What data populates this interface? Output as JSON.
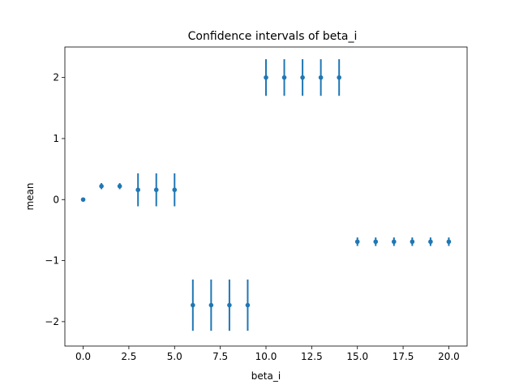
{
  "chart_data": {
    "type": "scatter",
    "title": "Confidence intervals of beta_i",
    "xlabel": "beta_i",
    "ylabel": "mean",
    "xlim": [
      -1,
      21
    ],
    "ylim": [
      -2.4,
      2.5
    ],
    "grid": false,
    "color": "#1f77b4",
    "x_ticks": [
      0.0,
      2.5,
      5.0,
      7.5,
      10.0,
      12.5,
      15.0,
      17.5,
      20.0
    ],
    "x_tick_labels": [
      "0.0",
      "2.5",
      "5.0",
      "7.5",
      "10.0",
      "12.5",
      "15.0",
      "17.5",
      "20.0"
    ],
    "y_ticks": [
      -2,
      -1,
      0,
      1,
      2
    ],
    "y_tick_labels": [
      "−2",
      "−1",
      "0",
      "1",
      "2"
    ],
    "points": [
      {
        "x": 0,
        "y": 0.0,
        "lower": 0.0,
        "upper": 0.0
      },
      {
        "x": 1,
        "y": 0.22,
        "lower": 0.17,
        "upper": 0.27
      },
      {
        "x": 2,
        "y": 0.22,
        "lower": 0.17,
        "upper": 0.27
      },
      {
        "x": 3,
        "y": 0.16,
        "lower": -0.11,
        "upper": 0.43
      },
      {
        "x": 4,
        "y": 0.16,
        "lower": -0.11,
        "upper": 0.43
      },
      {
        "x": 5,
        "y": 0.16,
        "lower": -0.11,
        "upper": 0.43
      },
      {
        "x": 6,
        "y": -1.73,
        "lower": -2.15,
        "upper": -1.31
      },
      {
        "x": 7,
        "y": -1.73,
        "lower": -2.15,
        "upper": -1.31
      },
      {
        "x": 8,
        "y": -1.73,
        "lower": -2.15,
        "upper": -1.31
      },
      {
        "x": 9,
        "y": -1.73,
        "lower": -2.15,
        "upper": -1.31
      },
      {
        "x": 10,
        "y": 2.0,
        "lower": 1.7,
        "upper": 2.3
      },
      {
        "x": 11,
        "y": 2.0,
        "lower": 1.7,
        "upper": 2.3
      },
      {
        "x": 12,
        "y": 2.0,
        "lower": 1.7,
        "upper": 2.3
      },
      {
        "x": 13,
        "y": 2.0,
        "lower": 1.7,
        "upper": 2.3
      },
      {
        "x": 14,
        "y": 2.0,
        "lower": 1.7,
        "upper": 2.3
      },
      {
        "x": 15,
        "y": -0.69,
        "lower": -0.76,
        "upper": -0.62
      },
      {
        "x": 16,
        "y": -0.69,
        "lower": -0.76,
        "upper": -0.62
      },
      {
        "x": 17,
        "y": -0.69,
        "lower": -0.76,
        "upper": -0.62
      },
      {
        "x": 18,
        "y": -0.69,
        "lower": -0.76,
        "upper": -0.62
      },
      {
        "x": 19,
        "y": -0.69,
        "lower": -0.76,
        "upper": -0.62
      },
      {
        "x": 20,
        "y": -0.69,
        "lower": -0.76,
        "upper": -0.62
      }
    ]
  }
}
